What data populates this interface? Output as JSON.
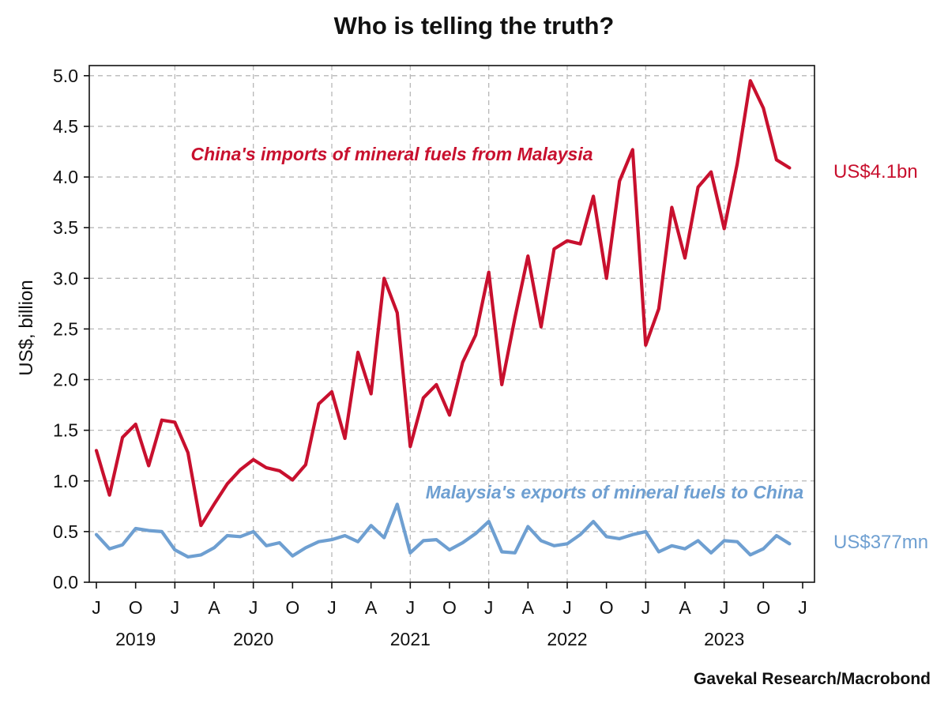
{
  "chart_data": {
    "type": "line",
    "title": "Who is telling the truth?",
    "ylabel": "US$, billion",
    "xlabel": "",
    "ylim": [
      0,
      5.1
    ],
    "yticks": [
      "0.0",
      "0.5",
      "1.0",
      "1.5",
      "2.0",
      "2.5",
      "3.0",
      "3.5",
      "4.0",
      "4.5",
      "5.0"
    ],
    "x_month_ticks": [
      "J",
      "O",
      "J",
      "A",
      "J",
      "O",
      "J",
      "A",
      "J",
      "O",
      "J",
      "A",
      "J",
      "O",
      "J",
      "A",
      "J",
      "O",
      "J"
    ],
    "x_month_tick_index": [
      0,
      3,
      6,
      9,
      12,
      15,
      18,
      21,
      24,
      27,
      30,
      33,
      36,
      39,
      42,
      45,
      48,
      51,
      54
    ],
    "years": [
      {
        "label": "2019",
        "center_index": 3
      },
      {
        "label": "2020",
        "center_index": 12
      },
      {
        "label": "2021",
        "center_index": 24
      },
      {
        "label": "2022",
        "center_index": 36
      },
      {
        "label": "2023",
        "center_index": 48
      }
    ],
    "x_range_index": [
      0,
      54
    ],
    "grid": true,
    "series": [
      {
        "name": "China's imports of mineral fuels from Malaysia",
        "color": "#c8102e",
        "end_label": "US$4.1bn",
        "start_month": "2019-07",
        "values": [
          1.3,
          0.86,
          1.43,
          1.56,
          1.15,
          1.6,
          1.58,
          1.28,
          0.56,
          0.77,
          0.97,
          1.11,
          1.21,
          1.13,
          1.1,
          1.01,
          1.16,
          1.76,
          1.88,
          1.42,
          2.27,
          1.86,
          3.0,
          2.66,
          1.34,
          1.82,
          1.95,
          1.65,
          2.17,
          2.44,
          3.06,
          1.95,
          2.61,
          3.22,
          2.52,
          3.29,
          3.37,
          3.34,
          3.81,
          3.0,
          3.96,
          4.27,
          2.34,
          2.7,
          3.7,
          3.2,
          3.9,
          4.05,
          3.49,
          4.13,
          4.95,
          4.68,
          4.17,
          4.09
        ]
      },
      {
        "name": "Malaysia's exports of mineral fuels to China",
        "color": "#6e9fd1",
        "end_label": "US$377mn",
        "start_month": "2019-07",
        "values": [
          0.47,
          0.33,
          0.37,
          0.53,
          0.51,
          0.5,
          0.32,
          0.25,
          0.27,
          0.34,
          0.46,
          0.45,
          0.5,
          0.36,
          0.39,
          0.26,
          0.34,
          0.4,
          0.42,
          0.46,
          0.4,
          0.56,
          0.44,
          0.77,
          0.29,
          0.41,
          0.42,
          0.32,
          0.39,
          0.48,
          0.6,
          0.3,
          0.29,
          0.55,
          0.41,
          0.36,
          0.38,
          0.47,
          0.6,
          0.45,
          0.43,
          0.47,
          0.5,
          0.3,
          0.36,
          0.33,
          0.41,
          0.29,
          0.41,
          0.4,
          0.27,
          0.33,
          0.46,
          0.38
        ]
      }
    ],
    "source": "Gavekal Research/Macrobond"
  }
}
